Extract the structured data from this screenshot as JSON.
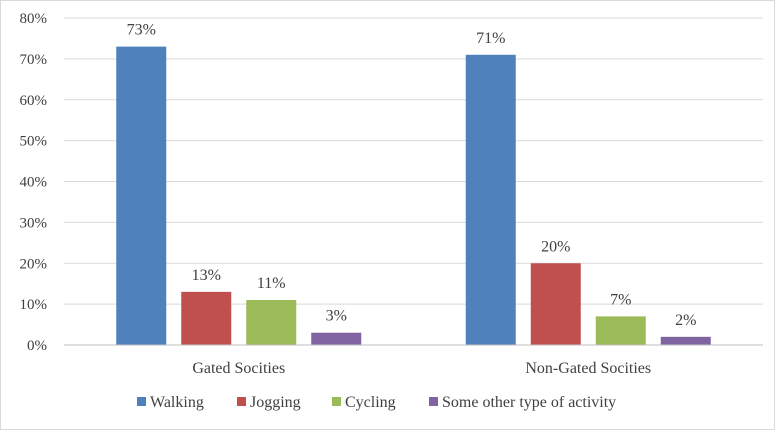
{
  "chart_data": {
    "type": "bar",
    "categories": [
      "Gated Socities",
      "Non-Gated Socities"
    ],
    "series": [
      {
        "name": "Walking",
        "values": [
          73,
          71
        ],
        "labels": [
          "73%",
          "71%"
        ],
        "color": "#4f81bd"
      },
      {
        "name": "Jogging",
        "values": [
          13,
          20
        ],
        "labels": [
          "13%",
          "20%"
        ],
        "color": "#c0504d"
      },
      {
        "name": "Cycling",
        "values": [
          11,
          7
        ],
        "labels": [
          "11%",
          "7%"
        ],
        "color": "#9bbb59"
      },
      {
        "name": "Some other type of activity",
        "values": [
          3,
          2
        ],
        "labels": [
          "3%",
          "2%"
        ],
        "color": "#8064a2"
      }
    ],
    "ylim": [
      0,
      80
    ],
    "yticks": [
      0,
      10,
      20,
      30,
      40,
      50,
      60,
      70,
      80
    ],
    "ytick_labels": [
      "0%",
      "10%",
      "20%",
      "30%",
      "40%",
      "50%",
      "60%",
      "70%",
      "80%"
    ],
    "grid": true,
    "legend": "bottom",
    "title": "",
    "xlabel": "",
    "ylabel": ""
  }
}
